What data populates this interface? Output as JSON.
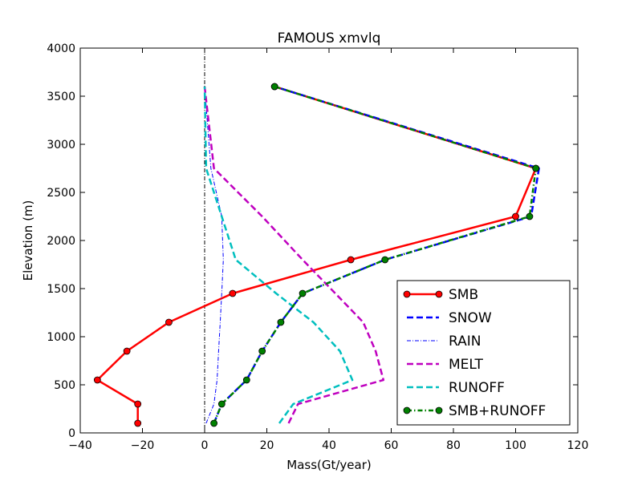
{
  "chart_data": {
    "type": "line",
    "title": "FAMOUS xmvlq",
    "xlabel": "Mass(Gt/year)",
    "ylabel": "Elevation (m)",
    "xlim": [
      -40,
      120
    ],
    "ylim": [
      0,
      4000
    ],
    "xticks": [
      -40,
      -20,
      0,
      20,
      40,
      60,
      80,
      100,
      120
    ],
    "yticks": [
      0,
      500,
      1000,
      1500,
      2000,
      2500,
      3000,
      3500,
      4000
    ],
    "grid": false,
    "legend_position": "lower right",
    "reference_line": {
      "x": 0,
      "color": "#000000",
      "style": "dashdot"
    },
    "series": [
      {
        "name": "SMB",
        "color": "#ff0000",
        "style": "solid",
        "marker": "circle",
        "marker_color": "#ff0000",
        "x": [
          -21.5,
          -21.5,
          -34.5,
          -25,
          -11.5,
          9,
          47,
          100,
          106.5,
          22.5
        ],
        "y": [
          100,
          300,
          550,
          850,
          1150,
          1450,
          1800,
          2250,
          2750,
          3600
        ]
      },
      {
        "name": "SNOW",
        "color": "#0000ff",
        "style": "dashed",
        "marker": "none",
        "x": [
          3,
          5.5,
          13.5,
          18.5,
          24.5,
          31.5,
          58,
          105,
          107.5,
          22.5
        ],
        "y": [
          100,
          300,
          550,
          850,
          1150,
          1450,
          1800,
          2250,
          2750,
          3600
        ]
      },
      {
        "name": "RAIN",
        "color": "#0000ff",
        "style": "dashdot",
        "marker": "none",
        "x": [
          0.5,
          3,
          4,
          4.5,
          5,
          5.5,
          6,
          5.5,
          2,
          0
        ],
        "y": [
          100,
          300,
          550,
          850,
          1150,
          1450,
          1800,
          2250,
          2750,
          3600
        ]
      },
      {
        "name": "MELT",
        "color": "#bf00bf",
        "style": "dashed",
        "marker": "none",
        "x": [
          27,
          30,
          57.5,
          55,
          51,
          42,
          31.5,
          18.5,
          3,
          0
        ],
        "y": [
          100,
          300,
          550,
          850,
          1150,
          1450,
          1800,
          2250,
          2750,
          3600
        ]
      },
      {
        "name": "RUNOFF",
        "color": "#00bfbf",
        "style": "dashed",
        "marker": "none",
        "x": [
          24,
          28.5,
          47.5,
          43.5,
          35,
          23,
          10,
          5.5,
          0.5,
          0
        ],
        "y": [
          100,
          300,
          550,
          850,
          1150,
          1450,
          1800,
          2250,
          2750,
          3600
        ]
      },
      {
        "name": "SMB+RUNOFF",
        "color": "#008000",
        "style": "dashdot",
        "marker": "circle",
        "marker_color": "#008000",
        "x": [
          3,
          5.5,
          13.5,
          18.5,
          24.5,
          31.5,
          58,
          104.5,
          106.5,
          22.5
        ],
        "y": [
          100,
          300,
          550,
          850,
          1150,
          1450,
          1800,
          2250,
          2750,
          3600
        ]
      }
    ]
  }
}
